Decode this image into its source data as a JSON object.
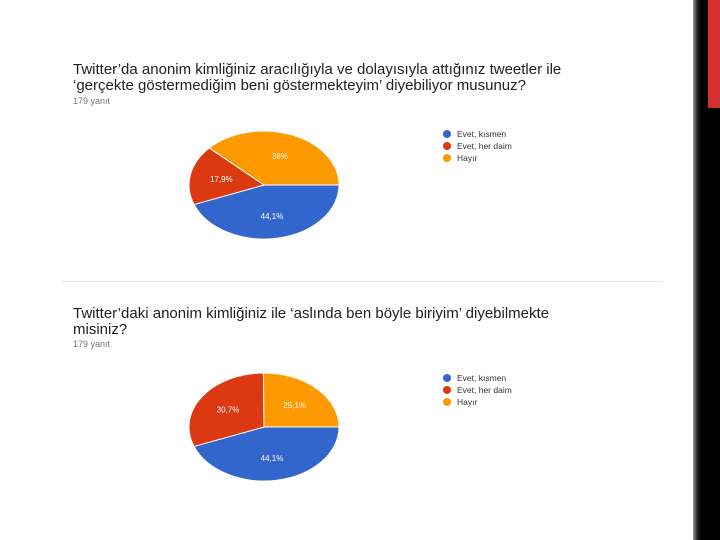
{
  "colors": {
    "blue": "#3366cc",
    "red": "#dc3912",
    "orange": "#ff9900"
  },
  "questions": [
    {
      "title_line1": "Twitter’da anonim kimliğiniz aracılığıyla ve dolayısıyla attığınız tweetler ile",
      "title_line2": "‘gerçekte göstermediğim beni göstermekteyim’ diyebiliyor musunuz?",
      "response_count": "179 yanıt"
    },
    {
      "title_line1": "Twitter’daki anonim kimliğiniz ile ‘aslında ben böyle biriyim’ diyebilmekte",
      "title_line2": "misiniz?",
      "response_count": "179 yanıt"
    }
  ],
  "chart_data": [
    {
      "type": "pie",
      "legend_position": "right",
      "slices": [
        {
          "label": "Evet, kısmen",
          "value": 44.1,
          "display": "44,1%",
          "color": "#3366cc"
        },
        {
          "label": "Evet, her daim",
          "value": 17.9,
          "display": "17,9%",
          "color": "#dc3912"
        },
        {
          "label": "Hayır",
          "value": 38,
          "display": "38%",
          "color": "#ff9900"
        }
      ]
    },
    {
      "type": "pie",
      "legend_position": "right",
      "slices": [
        {
          "label": "Evet, kısmen",
          "value": 44.1,
          "display": "44,1%",
          "color": "#3366cc"
        },
        {
          "label": "Evet, her daim",
          "value": 30.7,
          "display": "30,7%",
          "color": "#dc3912"
        },
        {
          "label": "Hayır",
          "value": 25.1,
          "display": "25,1%",
          "color": "#ff9900"
        }
      ]
    }
  ]
}
